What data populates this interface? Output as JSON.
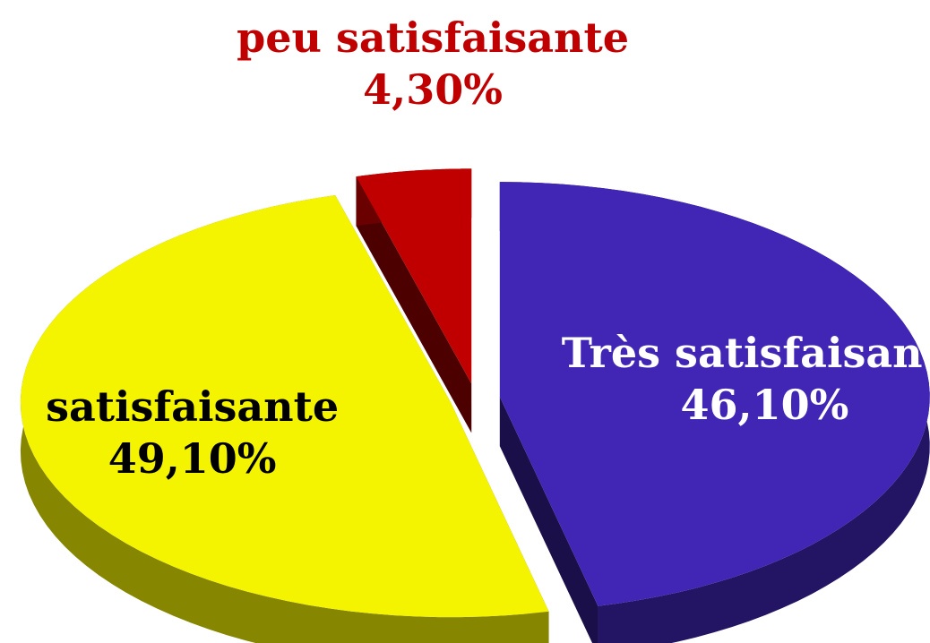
{
  "chart_data": {
    "type": "pie",
    "categories": [
      "Très satisfaisante",
      "satisfaisante",
      "peu satisfaisante"
    ],
    "values": [
      46.1,
      49.1,
      4.3
    ],
    "value_labels": [
      "46,10%",
      "49,10%",
      "4,30%"
    ],
    "colors": [
      "#4125b5",
      "#f4f400",
      "#c00000"
    ]
  }
}
